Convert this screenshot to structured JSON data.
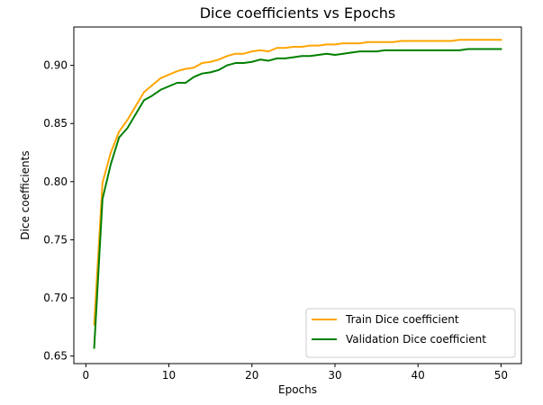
{
  "chart_data": {
    "type": "line",
    "title": "Dice coefficients vs Epochs",
    "xlabel": "Epochs",
    "ylabel": "Dice coefficients",
    "xlim": [
      -1.45,
      52.45
    ],
    "ylim": [
      0.6435,
      0.933
    ],
    "xticks": [
      0,
      10,
      20,
      30,
      40,
      50
    ],
    "xtick_labels": [
      "0",
      "10",
      "20",
      "30",
      "40",
      "50"
    ],
    "yticks": [
      0.65,
      0.7,
      0.75,
      0.8,
      0.85,
      0.9
    ],
    "ytick_labels": [
      "0.65",
      "0.70",
      "0.75",
      "0.80",
      "0.85",
      "0.90"
    ],
    "grid": false,
    "legend_position": "lower right",
    "x": [
      1,
      2,
      3,
      4,
      5,
      6,
      7,
      8,
      9,
      10,
      11,
      12,
      13,
      14,
      15,
      16,
      17,
      18,
      19,
      20,
      21,
      22,
      23,
      24,
      25,
      26,
      27,
      28,
      29,
      30,
      31,
      32,
      33,
      34,
      35,
      36,
      37,
      38,
      39,
      40,
      41,
      42,
      43,
      44,
      45,
      46,
      47,
      48,
      49,
      50
    ],
    "series": [
      {
        "name": "Train Dice coefficient",
        "color": "#ffa500",
        "values": [
          0.677,
          0.799,
          0.825,
          0.843,
          0.853,
          0.865,
          0.877,
          0.883,
          0.889,
          0.892,
          0.895,
          0.897,
          0.898,
          0.902,
          0.903,
          0.905,
          0.908,
          0.91,
          0.91,
          0.912,
          0.913,
          0.912,
          0.915,
          0.915,
          0.916,
          0.916,
          0.917,
          0.917,
          0.918,
          0.918,
          0.919,
          0.919,
          0.919,
          0.92,
          0.92,
          0.92,
          0.92,
          0.921,
          0.921,
          0.921,
          0.921,
          0.921,
          0.921,
          0.921,
          0.922,
          0.922,
          0.922,
          0.922,
          0.922,
          0.922
        ]
      },
      {
        "name": "Validation Dice coefficient",
        "color": "#008000",
        "values": [
          0.657,
          0.785,
          0.815,
          0.838,
          0.846,
          0.858,
          0.87,
          0.874,
          0.879,
          0.882,
          0.885,
          0.885,
          0.89,
          0.893,
          0.894,
          0.896,
          0.9,
          0.902,
          0.902,
          0.903,
          0.905,
          0.904,
          0.906,
          0.906,
          0.907,
          0.908,
          0.908,
          0.909,
          0.91,
          0.909,
          0.91,
          0.911,
          0.912,
          0.912,
          0.912,
          0.913,
          0.913,
          0.913,
          0.913,
          0.913,
          0.913,
          0.913,
          0.913,
          0.913,
          0.913,
          0.914,
          0.914,
          0.914,
          0.914,
          0.914
        ]
      }
    ]
  }
}
